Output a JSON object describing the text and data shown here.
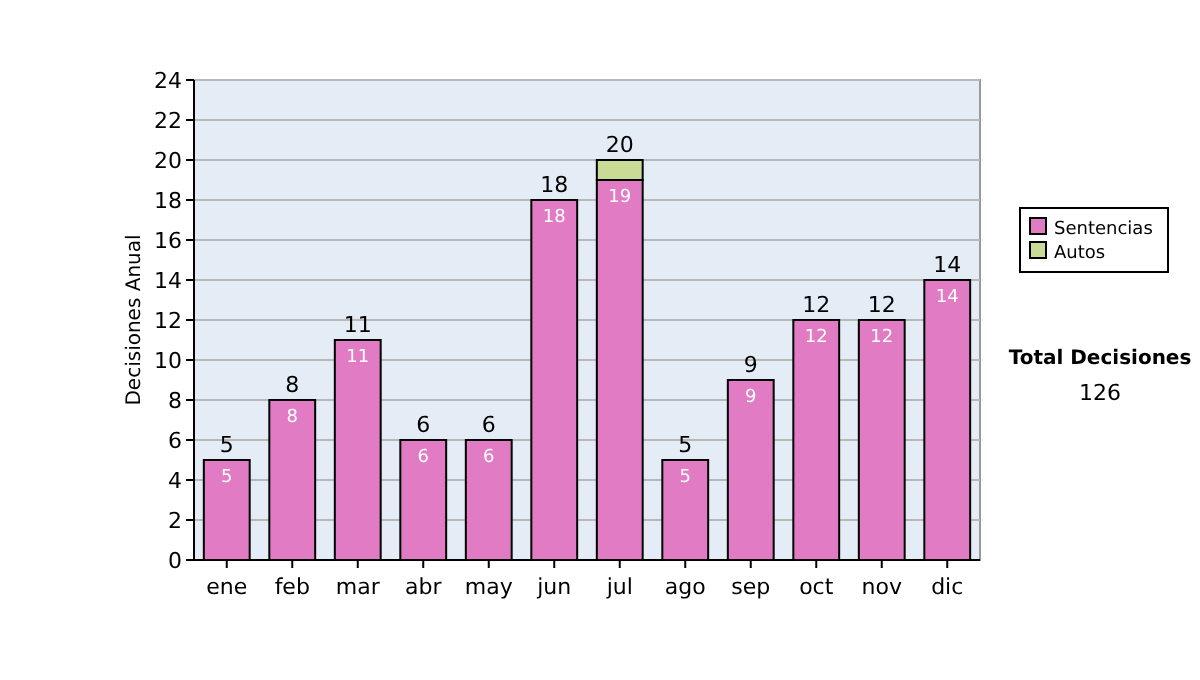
{
  "chart_data": {
    "type": "bar",
    "ylabel": "Decisiones Anual",
    "categories": [
      "ene",
      "feb",
      "mar",
      "abr",
      "may",
      "jun",
      "jul",
      "ago",
      "sep",
      "oct",
      "nov",
      "dic"
    ],
    "series": [
      {
        "name": "Sentencias",
        "color": "#e07bc4",
        "values": [
          5,
          8,
          11,
          6,
          6,
          18,
          19,
          5,
          9,
          12,
          12,
          14
        ],
        "value_labels": [
          "5",
          "8",
          "11",
          "6",
          "6",
          "18",
          "19",
          "5",
          "9",
          "12",
          "12",
          "14"
        ]
      },
      {
        "name": "Autos",
        "color": "#c8dc96",
        "values": [
          0,
          0,
          0,
          0,
          0,
          0,
          1,
          0,
          0,
          0,
          0,
          0
        ]
      }
    ],
    "stacked": true,
    "totals": [
      "5",
      "8",
      "11",
      "6",
      "6",
      "18",
      "20",
      "5",
      "9",
      "12",
      "12",
      "14"
    ],
    "ylim": [
      0,
      24
    ],
    "yticks": [
      0,
      2,
      4,
      6,
      8,
      10,
      12,
      14,
      16,
      18,
      20,
      22,
      24
    ],
    "grid": "y",
    "legend": "right",
    "annotations": [
      "Total Decisiones",
      "126"
    ]
  }
}
